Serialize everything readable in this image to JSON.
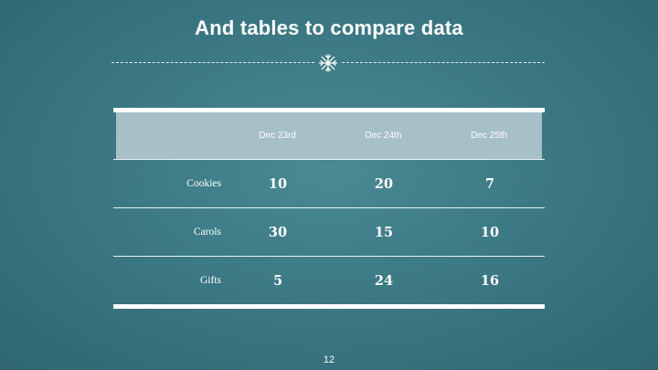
{
  "slide": {
    "title": "And tables to compare data",
    "page_number": "12"
  },
  "divider": {
    "icon": "snowflake-icon"
  },
  "table": {
    "columns": [
      "Dec 23rd",
      "Dec 24th",
      "Dec 25th"
    ],
    "rows": [
      {
        "label": "Cookies",
        "values": [
          "10",
          "20",
          "7"
        ]
      },
      {
        "label": "Carols",
        "values": [
          "30",
          "15",
          "10"
        ]
      },
      {
        "label": "Gifts",
        "values": [
          "5",
          "24",
          "16"
        ]
      }
    ]
  },
  "colors": {
    "background": "#3d7b86",
    "header_fill": "#a7bfc6",
    "text": "#ffffff"
  }
}
